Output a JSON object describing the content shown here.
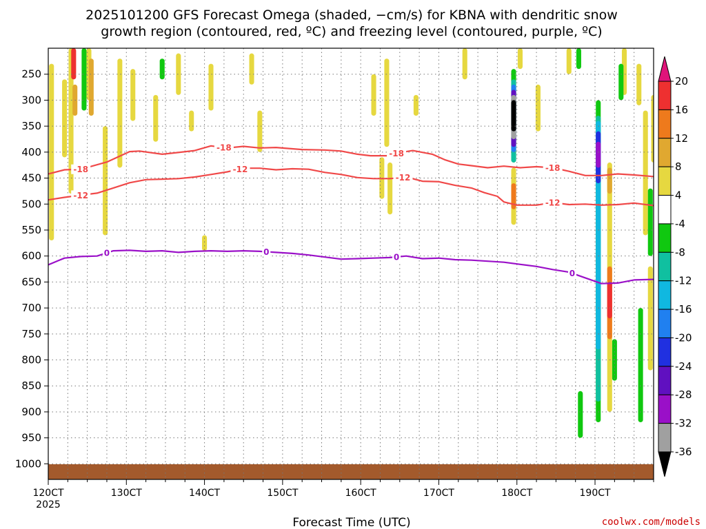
{
  "chart_data": {
    "type": "heatmap",
    "title_line1": "2025101200 GFS Forecast Omega (shaded, −cm/s) for KBNA with dendritic snow",
    "title_line2": "growth region (contoured, red, ºC) and freezing level (contoured, purple, ºC)",
    "xlabel": "Forecast Time (UTC)",
    "x_first_year": "2025",
    "credit": "coolwx.com/models",
    "x_ticks": [
      "120CT",
      "130CT",
      "140CT",
      "150CT",
      "160CT",
      "170CT",
      "180CT",
      "190CT"
    ],
    "x_tick_hours": [
      0,
      24,
      48,
      72,
      96,
      120,
      144,
      168
    ],
    "x_range_hours": [
      0,
      186
    ],
    "y_ticks": [
      "250",
      "300",
      "350",
      "400",
      "450",
      "500",
      "550",
      "600",
      "650",
      "700",
      "750",
      "800",
      "850",
      "900",
      "950",
      "1000"
    ],
    "y_tick_values": [
      250,
      300,
      350,
      400,
      450,
      500,
      550,
      600,
      650,
      700,
      750,
      800,
      850,
      900,
      950,
      1000
    ],
    "y_range_hpa": [
      200,
      1030
    ],
    "colorbar": {
      "labels": [
        "20",
        "16",
        "12",
        "8",
        "4",
        "-4",
        "-8",
        "-12",
        "-16",
        "-20",
        "-24",
        "-28",
        "-32",
        "-36"
      ],
      "colors": [
        "#e0147a",
        "#ee3030",
        "#ee7a1c",
        "#e0a830",
        "#e6d840",
        "#ffffff",
        "#10c810",
        "#10c0a0",
        "#10b8e0",
        "#2080f0",
        "#2030e0",
        "#6010c0",
        "#9a10c8",
        "#a0a0a0",
        "#000000"
      ]
    },
    "omega_level_colors": {
      "4": "#e6d840",
      "8": "#e0a830",
      "12": "#ee7a1c",
      "16": "#ee3030",
      "-4": "#10c810",
      "-8": "#10c0a0",
      "-12": "#10b8e0",
      "-16": "#2080f0",
      "-20": "#2030e0",
      "-24": "#6010c0",
      "-28": "#9a10c8",
      "-32": "#a0a0a0",
      "-36": "#000000"
    },
    "omega_cells": [
      {
        "h": 1.0,
        "p0": 230,
        "p1": 570,
        "v": 4
      },
      {
        "h": 5.0,
        "p0": 260,
        "p1": 410,
        "v": 4
      },
      {
        "h": 7.0,
        "p0": 200,
        "p1": 480,
        "v": 4
      },
      {
        "h": 7.8,
        "p0": 200,
        "p1": 260,
        "v": 16
      },
      {
        "h": 8.2,
        "p0": 270,
        "p1": 330,
        "v": 8
      },
      {
        "h": 11.0,
        "p0": 200,
        "p1": 320,
        "v": -4
      },
      {
        "h": 12.5,
        "p0": 200,
        "p1": 300,
        "v": 4
      },
      {
        "h": 13.2,
        "p0": 220,
        "p1": 330,
        "v": 8
      },
      {
        "h": 17.5,
        "p0": 350,
        "p1": 560,
        "v": 4
      },
      {
        "h": 22.0,
        "p0": 220,
        "p1": 430,
        "v": 4
      },
      {
        "h": 26.0,
        "p0": 240,
        "p1": 340,
        "v": 4
      },
      {
        "h": 33.0,
        "p0": 290,
        "p1": 380,
        "v": 4
      },
      {
        "h": 35.0,
        "p0": 220,
        "p1": 260,
        "v": -4
      },
      {
        "h": 40.0,
        "p0": 210,
        "p1": 290,
        "v": 4
      },
      {
        "h": 44.0,
        "p0": 320,
        "p1": 360,
        "v": 4
      },
      {
        "h": 48.0,
        "p0": 560,
        "p1": 590,
        "v": 4
      },
      {
        "h": 50.0,
        "p0": 230,
        "p1": 320,
        "v": 4
      },
      {
        "h": 62.5,
        "p0": 210,
        "p1": 270,
        "v": 4
      },
      {
        "h": 65.0,
        "p0": 320,
        "p1": 400,
        "v": 4
      },
      {
        "h": 100.0,
        "p0": 250,
        "p1": 330,
        "v": 4
      },
      {
        "h": 104.0,
        "p0": 220,
        "p1": 390,
        "v": 4
      },
      {
        "h": 102.5,
        "p0": 410,
        "p1": 490,
        "v": 4
      },
      {
        "h": 105.0,
        "p0": 420,
        "p1": 520,
        "v": 4
      },
      {
        "h": 113.0,
        "p0": 290,
        "p1": 330,
        "v": 4
      },
      {
        "h": 128.0,
        "p0": 200,
        "p1": 260,
        "v": 4
      },
      {
        "h": 145.0,
        "p0": 200,
        "p1": 240,
        "v": 4
      },
      {
        "h": 150.5,
        "p0": 270,
        "p1": 360,
        "v": 4
      },
      {
        "h": 160.0,
        "p0": 200,
        "p1": 250,
        "v": 4
      },
      {
        "h": 163.0,
        "p0": 200,
        "p1": 240,
        "v": -4
      },
      {
        "h": 177.0,
        "p0": 200,
        "p1": 290,
        "v": 4
      },
      {
        "h": 176.0,
        "p0": 230,
        "p1": 300,
        "v": -4
      },
      {
        "h": 181.5,
        "p0": 230,
        "p1": 310,
        "v": 4
      },
      {
        "h": 183.5,
        "p0": 320,
        "p1": 560,
        "v": 4
      },
      {
        "h": 186.0,
        "p0": 290,
        "p1": 420,
        "v": 4
      },
      {
        "h": 185.0,
        "p0": 470,
        "p1": 600,
        "v": -4
      },
      {
        "h": 182.0,
        "p0": 700,
        "p1": 920,
        "v": -4
      },
      {
        "h": 185.0,
        "p0": 620,
        "p1": 820,
        "v": 4
      },
      {
        "h": 174.0,
        "p0": 760,
        "p1": 840,
        "v": -4
      },
      {
        "h": 163.5,
        "p0": 860,
        "p1": 950,
        "v": -4
      },
      {
        "h": 143.0,
        "p0": 240,
        "p1": 420,
        "v": -4
      },
      {
        "h": 143.0,
        "p0": 260,
        "p1": 420,
        "v": -8
      },
      {
        "h": 143.0,
        "p0": 270,
        "p1": 400,
        "v": -16
      },
      {
        "h": 143.0,
        "p0": 280,
        "p1": 390,
        "v": -24
      },
      {
        "h": 143.0,
        "p0": 290,
        "p1": 375,
        "v": -32
      },
      {
        "h": 143.0,
        "p0": 300,
        "p1": 360,
        "v": -36
      },
      {
        "h": 143.0,
        "p0": 430,
        "p1": 540,
        "v": 4
      },
      {
        "h": 143.0,
        "p0": 460,
        "p1": 510,
        "v": 12
      },
      {
        "h": 169.0,
        "p0": 300,
        "p1": 920,
        "v": -4
      },
      {
        "h": 169.0,
        "p0": 330,
        "p1": 880,
        "v": -8
      },
      {
        "h": 169.0,
        "p0": 340,
        "p1": 780,
        "v": -12
      },
      {
        "h": 169.0,
        "p0": 360,
        "p1": 460,
        "v": -20
      },
      {
        "h": 169.0,
        "p0": 380,
        "p1": 430,
        "v": -28
      },
      {
        "h": 172.5,
        "p0": 420,
        "p1": 900,
        "v": 4
      },
      {
        "h": 172.5,
        "p0": 430,
        "p1": 480,
        "v": 8
      },
      {
        "h": 172.5,
        "p0": 620,
        "p1": 760,
        "v": 12
      },
      {
        "h": 172.5,
        "p0": 650,
        "p1": 720,
        "v": 16
      }
    ],
    "dendritic_contours": [
      {
        "level": -18,
        "labels_at_hours": [
          10,
          54,
          107,
          155
        ],
        "points": [
          [
            0,
            442
          ],
          [
            5,
            434
          ],
          [
            10,
            433
          ],
          [
            18,
            419
          ],
          [
            25,
            399
          ],
          [
            28,
            398
          ],
          [
            35,
            404
          ],
          [
            38,
            402
          ],
          [
            45,
            397
          ],
          [
            50,
            388
          ],
          [
            55,
            392
          ],
          [
            60,
            389
          ],
          [
            65,
            392
          ],
          [
            70,
            391
          ],
          [
            78,
            395
          ],
          [
            85,
            396
          ],
          [
            90,
            398
          ],
          [
            95,
            404
          ],
          [
            99,
            407
          ],
          [
            104,
            407
          ],
          [
            108,
            401
          ],
          [
            112,
            397
          ],
          [
            118,
            404
          ],
          [
            122,
            415
          ],
          [
            126,
            423
          ],
          [
            130,
            426
          ],
          [
            135,
            430
          ],
          [
            140,
            427
          ],
          [
            145,
            430
          ],
          [
            150,
            428
          ],
          [
            155,
            430
          ],
          [
            160,
            437
          ],
          [
            165,
            445
          ],
          [
            170,
            445
          ],
          [
            175,
            442
          ],
          [
            180,
            444
          ],
          [
            186,
            447
          ]
        ]
      },
      {
        "level": -12,
        "labels_at_hours": [
          10,
          59,
          109,
          155
        ],
        "points": [
          [
            0,
            492
          ],
          [
            5,
            487
          ],
          [
            10,
            483
          ],
          [
            15,
            479
          ],
          [
            20,
            469
          ],
          [
            25,
            459
          ],
          [
            30,
            453
          ],
          [
            35,
            452
          ],
          [
            40,
            451
          ],
          [
            45,
            448
          ],
          [
            50,
            443
          ],
          [
            55,
            438
          ],
          [
            60,
            431
          ],
          [
            65,
            431
          ],
          [
            70,
            434
          ],
          [
            75,
            432
          ],
          [
            80,
            433
          ],
          [
            85,
            439
          ],
          [
            90,
            443
          ],
          [
            95,
            449
          ],
          [
            100,
            451
          ],
          [
            105,
            451
          ],
          [
            110,
            448
          ],
          [
            115,
            456
          ],
          [
            120,
            457
          ],
          [
            125,
            464
          ],
          [
            130,
            469
          ],
          [
            134,
            478
          ],
          [
            138,
            485
          ],
          [
            140,
            496
          ],
          [
            144,
            502
          ],
          [
            150,
            502
          ],
          [
            155,
            497
          ],
          [
            160,
            501
          ],
          [
            165,
            500
          ],
          [
            170,
            502
          ],
          [
            175,
            501
          ],
          [
            180,
            498
          ],
          [
            186,
            503
          ]
        ]
      },
      {
        "level": 0,
        "labels_at_hours": [
          18,
          67,
          107,
          161
        ],
        "points": [
          [
            0,
            617
          ],
          [
            3,
            609
          ],
          [
            5,
            604
          ],
          [
            10,
            601
          ],
          [
            15,
            600
          ],
          [
            20,
            590
          ],
          [
            25,
            589
          ],
          [
            30,
            591
          ],
          [
            35,
            590
          ],
          [
            40,
            593
          ],
          [
            45,
            591
          ],
          [
            50,
            590
          ],
          [
            55,
            591
          ],
          [
            60,
            590
          ],
          [
            65,
            591
          ],
          [
            70,
            593
          ],
          [
            75,
            595
          ],
          [
            80,
            598
          ],
          [
            85,
            602
          ],
          [
            90,
            606
          ],
          [
            95,
            605
          ],
          [
            100,
            604
          ],
          [
            105,
            603
          ],
          [
            110,
            600
          ],
          [
            115,
            605
          ],
          [
            120,
            604
          ],
          [
            125,
            607
          ],
          [
            130,
            608
          ],
          [
            135,
            610
          ],
          [
            140,
            612
          ],
          [
            145,
            616
          ],
          [
            150,
            620
          ],
          [
            155,
            626
          ],
          [
            160,
            631
          ],
          [
            165,
            642
          ],
          [
            170,
            653
          ],
          [
            175,
            652
          ],
          [
            180,
            646
          ],
          [
            186,
            645
          ]
        ]
      }
    ],
    "contour_colors": {
      "-18": "#f04848",
      "-12": "#f04848",
      "0": "#9a10c8"
    }
  }
}
